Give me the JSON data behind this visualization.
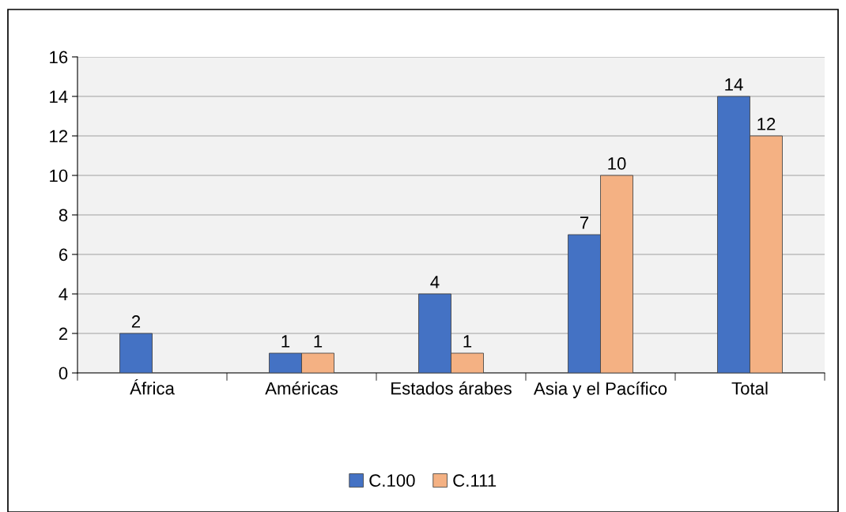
{
  "chart_data": {
    "type": "bar",
    "categories": [
      "África",
      "Américas",
      "Estados árabes",
      "Asia y el Pacífico",
      "Total"
    ],
    "series": [
      {
        "name": "C.100",
        "color": "#4472c4",
        "values": [
          2,
          1,
          4,
          7,
          14
        ]
      },
      {
        "name": "C.111",
        "color": "#f4b183",
        "values": [
          null,
          1,
          1,
          10,
          12
        ]
      }
    ],
    "ylim": [
      0,
      16
    ],
    "yticks": [
      0,
      2,
      4,
      6,
      8,
      10,
      12,
      14,
      16
    ],
    "grid": "y",
    "legend": "bottom",
    "data_labels": true
  }
}
